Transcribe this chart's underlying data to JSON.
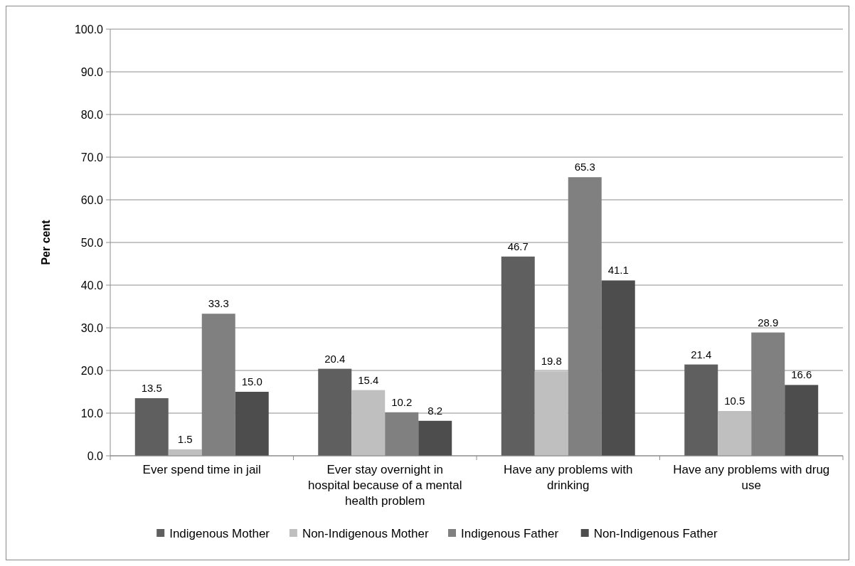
{
  "chart_data": {
    "type": "bar",
    "ylabel": "Per cent",
    "categories": [
      "Ever spend time in jail",
      "Ever stay overnight in hospital because of a mental health problem",
      "Have any problems with drinking",
      "Have any problems with drug use"
    ],
    "series": [
      {
        "name": "Indigenous Mother",
        "color": "#5f5f5f",
        "values": [
          13.5,
          20.4,
          46.7,
          21.4
        ],
        "value_labels": [
          "13.5",
          "20.4",
          "46.7",
          "21.4"
        ]
      },
      {
        "name": "Non-Indigenous Mother",
        "color": "#bfbfbf",
        "values": [
          1.5,
          15.4,
          19.8,
          10.5
        ],
        "value_labels": [
          "1.5",
          "15.4",
          "19.8",
          "10.5"
        ]
      },
      {
        "name": "Indigenous Father",
        "color": "#808080",
        "values": [
          33.3,
          10.2,
          65.3,
          28.9
        ],
        "value_labels": [
          "33.3",
          "10.2",
          "65.3",
          "28.9"
        ]
      },
      {
        "name": "Non-Indigenous Father",
        "color": "#4d4d4d",
        "values": [
          15.0,
          8.2,
          41.1,
          16.6
        ],
        "value_labels": [
          "15.0",
          "8.2",
          "41.1",
          "16.6"
        ]
      }
    ],
    "ylim": [
      0,
      100
    ],
    "yticks": [
      {
        "value": 0,
        "label": "0.0"
      },
      {
        "value": 10,
        "label": "10.0"
      },
      {
        "value": 20,
        "label": "20.0"
      },
      {
        "value": 30,
        "label": "30.0"
      },
      {
        "value": 40,
        "label": "40.0"
      },
      {
        "value": 50,
        "label": "50.0"
      },
      {
        "value": 60,
        "label": "60.0"
      },
      {
        "value": 70,
        "label": "70.0"
      },
      {
        "value": 80,
        "label": "80.0"
      },
      {
        "value": 90,
        "label": "90.0"
      },
      {
        "value": 100,
        "label": "100.0"
      }
    ],
    "grid": "y",
    "legend": "bottom"
  }
}
